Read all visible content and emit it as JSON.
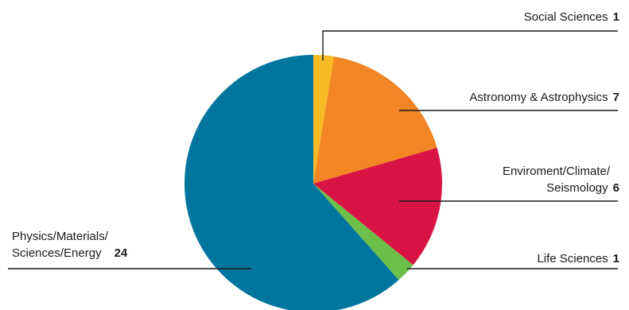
{
  "chart_data": {
    "type": "pie",
    "title": "",
    "slices": [
      {
        "label_lines": [
          "Social Sciences"
        ],
        "value": 1,
        "color": "#f7bc24"
      },
      {
        "label_lines": [
          "Astronomy & Astrophysics"
        ],
        "value": 7,
        "color": "#f28524"
      },
      {
        "label_lines": [
          "Enviroment/Climate/",
          "Seismology"
        ],
        "value": 6,
        "color": "#d91444"
      },
      {
        "label_lines": [
          "Life Sciences"
        ],
        "value": 1,
        "color": "#6cc04a"
      },
      {
        "label_lines": [
          "Physics/Materials/",
          "Sciences/Energy"
        ],
        "value": 24,
        "color": "#00759e"
      }
    ]
  }
}
